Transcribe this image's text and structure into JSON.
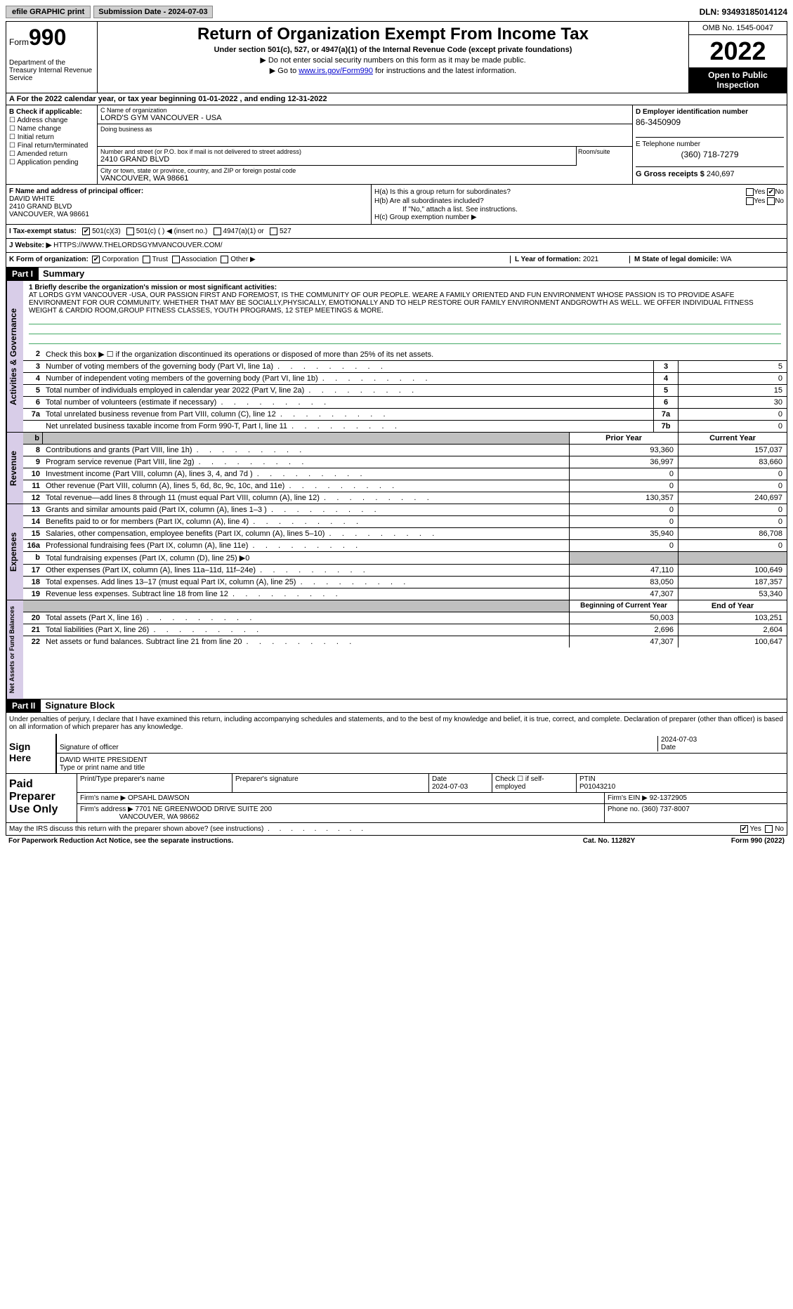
{
  "topbar": {
    "efile": "efile GRAPHIC print",
    "submission": "Submission Date - 2024-07-03",
    "dln": "DLN: 93493185014124"
  },
  "header": {
    "form_label": "Form",
    "form_num": "990",
    "dept": "Department of the Treasury Internal Revenue Service",
    "title": "Return of Organization Exempt From Income Tax",
    "subtitle": "Under section 501(c), 527, or 4947(a)(1) of the Internal Revenue Code (except private foundations)",
    "note1": "▶ Do not enter social security numbers on this form as it may be made public.",
    "note2_pre": "▶ Go to ",
    "note2_link": "www.irs.gov/Form990",
    "note2_post": " for instructions and the latest information.",
    "omb": "OMB No. 1545-0047",
    "year": "2022",
    "open_public": "Open to Public Inspection"
  },
  "section_a": "A For the 2022 calendar year, or tax year beginning 01-01-2022    , and ending 12-31-2022",
  "col_b": {
    "hdr": "B Check if applicable:",
    "items": [
      "Address change",
      "Name change",
      "Initial return",
      "Final return/terminated",
      "Amended return",
      "Application pending"
    ]
  },
  "col_c": {
    "name_lbl": "C Name of organization",
    "name_val": "LORD'S GYM VANCOUVER - USA",
    "dba_lbl": "Doing business as",
    "street_lbl": "Number and street (or P.O. box if mail is not delivered to street address)",
    "street_val": "2410 GRAND BLVD",
    "room_lbl": "Room/suite",
    "city_lbl": "City or town, state or province, country, and ZIP or foreign postal code",
    "city_val": "VANCOUVER, WA  98661"
  },
  "col_d": {
    "d_lbl": "D Employer identification number",
    "d_val": "86-3450909",
    "e_lbl": "E Telephone number",
    "e_val": "(360) 718-7279",
    "g_lbl": "G Gross receipts $",
    "g_val": "240,697"
  },
  "f": {
    "lbl": "F  Name and address of principal officer:",
    "name": "DAVID WHITE",
    "street": "2410 GRAND BLVD",
    "city": "VANCOUVER, WA  98661"
  },
  "h": {
    "ha": "H(a)  Is this a group return for subordinates?",
    "hb": "H(b)  Are all subordinates included?",
    "hb_note": "If \"No,\" attach a list. See instructions.",
    "hc": "H(c)  Group exemption number ▶",
    "yes": "Yes",
    "no": "No"
  },
  "i": {
    "lbl": "I    Tax-exempt status:",
    "opts": [
      "501(c)(3)",
      "501(c) (  ) ◀ (insert no.)",
      "4947(a)(1) or",
      "527"
    ]
  },
  "j": {
    "lbl": "J   Website: ▶",
    "val": "HTTPS://WWW.THELORDSGYMVANCOUVER.COM/"
  },
  "k": {
    "lbl": "K Form of organization:",
    "opts": [
      "Corporation",
      "Trust",
      "Association",
      "Other ▶"
    ],
    "l_lbl": "L Year of formation:",
    "l_val": "2021",
    "m_lbl": "M State of legal domicile:",
    "m_val": "WA"
  },
  "part1": {
    "hdr": "Part I",
    "title": "Summary",
    "line1_lbl": "1  Briefly describe the organization's mission or most significant activities:",
    "mission": "AT LORDS GYM VANCOUVER -USA, OUR PASSION FIRST AND FOREMOST, IS THE COMMUNITY OF OUR PEOPLE. WEARE A FAMILY ORIENTED AND FUN ENVIRONMENT WHOSE PASSION IS TO PROVIDE ASAFE ENVIRONMENT FOR OUR COMMUNITY. WHETHER THAT MAY BE SOCIALLY,PHYSICALLY, EMOTIONALLY AND TO HELP RESTORE OUR FAMILY ENVIRONMENT ANDGROWTH AS WELL. WE OFFER INDIVIDUAL FITNESS WEIGHT & CARDIO ROOM,GROUP FITNESS CLASSES, YOUTH PROGRAMS, 12 STEP MEETINGS & MORE.",
    "line2": "Check this box ▶ ☐  if the organization discontinued its operations or disposed of more than 25% of its net assets.",
    "vtab": "Activities & Governance",
    "rows": [
      {
        "n": "3",
        "t": "Number of voting members of the governing body (Part VI, line 1a)",
        "box": "3",
        "v": "5"
      },
      {
        "n": "4",
        "t": "Number of independent voting members of the governing body (Part VI, line 1b)",
        "box": "4",
        "v": "0"
      },
      {
        "n": "5",
        "t": "Total number of individuals employed in calendar year 2022 (Part V, line 2a)",
        "box": "5",
        "v": "15"
      },
      {
        "n": "6",
        "t": "Total number of volunteers (estimate if necessary)",
        "box": "6",
        "v": "30"
      },
      {
        "n": "7a",
        "t": "Total unrelated business revenue from Part VIII, column (C), line 12",
        "box": "7a",
        "v": "0"
      },
      {
        "n": "",
        "t": "Net unrelated business taxable income from Form 990-T, Part I, line 11",
        "box": "7b",
        "v": "0"
      }
    ]
  },
  "revenue": {
    "vtab": "Revenue",
    "hdr_prior": "Prior Year",
    "hdr_curr": "Current Year",
    "rows": [
      {
        "n": "8",
        "t": "Contributions and grants (Part VIII, line 1h)",
        "p": "93,360",
        "c": "157,037"
      },
      {
        "n": "9",
        "t": "Program service revenue (Part VIII, line 2g)",
        "p": "36,997",
        "c": "83,660"
      },
      {
        "n": "10",
        "t": "Investment income (Part VIII, column (A), lines 3, 4, and 7d )",
        "p": "0",
        "c": "0"
      },
      {
        "n": "11",
        "t": "Other revenue (Part VIII, column (A), lines 5, 6d, 8c, 9c, 10c, and 11e)",
        "p": "0",
        "c": "0"
      },
      {
        "n": "12",
        "t": "Total revenue—add lines 8 through 11 (must equal Part VIII, column (A), line 12)",
        "p": "130,357",
        "c": "240,697"
      }
    ]
  },
  "expenses": {
    "vtab": "Expenses",
    "rows": [
      {
        "n": "13",
        "t": "Grants and similar amounts paid (Part IX, column (A), lines 1–3 )",
        "p": "0",
        "c": "0"
      },
      {
        "n": "14",
        "t": "Benefits paid to or for members (Part IX, column (A), line 4)",
        "p": "0",
        "c": "0"
      },
      {
        "n": "15",
        "t": "Salaries, other compensation, employee benefits (Part IX, column (A), lines 5–10)",
        "p": "35,940",
        "c": "86,708"
      },
      {
        "n": "16a",
        "t": "Professional fundraising fees (Part IX, column (A), line 11e)",
        "p": "0",
        "c": "0"
      },
      {
        "n": "b",
        "t": "Total fundraising expenses (Part IX, column (D), line 25) ▶0",
        "p": "",
        "c": "",
        "shade": true
      },
      {
        "n": "17",
        "t": "Other expenses (Part IX, column (A), lines 11a–11d, 11f–24e)",
        "p": "47,110",
        "c": "100,649"
      },
      {
        "n": "18",
        "t": "Total expenses. Add lines 13–17 (must equal Part IX, column (A), line 25)",
        "p": "83,050",
        "c": "187,357"
      },
      {
        "n": "19",
        "t": "Revenue less expenses. Subtract line 18 from line 12",
        "p": "47,307",
        "c": "53,340"
      }
    ]
  },
  "netassets": {
    "vtab": "Net Assets or Fund Balances",
    "hdr_beg": "Beginning of Current Year",
    "hdr_end": "End of Year",
    "rows": [
      {
        "n": "20",
        "t": "Total assets (Part X, line 16)",
        "p": "50,003",
        "c": "103,251"
      },
      {
        "n": "21",
        "t": "Total liabilities (Part X, line 26)",
        "p": "2,696",
        "c": "2,604"
      },
      {
        "n": "22",
        "t": "Net assets or fund balances. Subtract line 21 from line 20",
        "p": "47,307",
        "c": "100,647"
      }
    ]
  },
  "part2": {
    "hdr": "Part II",
    "title": "Signature Block",
    "decl": "Under penalties of perjury, I declare that I have examined this return, including accompanying schedules and statements, and to the best of my knowledge and belief, it is true, correct, and complete. Declaration of preparer (other than officer) is based on all information of which preparer has any knowledge.",
    "sign_here": "Sign Here",
    "sig_officer": "Signature of officer",
    "date_lbl": "Date",
    "date_val": "2024-07-03",
    "name_title": "DAVID WHITE  PRESIDENT",
    "name_title_lbl": "Type or print name and title"
  },
  "paid": {
    "lbl": "Paid Preparer Use Only",
    "print_name_lbl": "Print/Type preparer's name",
    "prep_sig_lbl": "Preparer's signature",
    "date_lbl": "Date",
    "date_val": "2024-07-03",
    "check_lbl": "Check ☐ if self-employed",
    "ptin_lbl": "PTIN",
    "ptin_val": "P01043210",
    "firm_name_lbl": "Firm's name      ▶",
    "firm_name_val": "OPSAHL DAWSON",
    "firm_ein_lbl": "Firm's EIN ▶",
    "firm_ein_val": "92-1372905",
    "firm_addr_lbl": "Firm's address ▶",
    "firm_addr_val1": "7701 NE GREENWOOD DRIVE SUITE 200",
    "firm_addr_val2": "VANCOUVER, WA  98662",
    "phone_lbl": "Phone no.",
    "phone_val": "(360) 737-8007"
  },
  "footer": {
    "discuss": "May the IRS discuss this return with the preparer shown above? (see instructions)",
    "yes": "Yes",
    "no": "No",
    "paperwork": "For Paperwork Reduction Act Notice, see the separate instructions.",
    "cat": "Cat. No. 11282Y",
    "form": "Form 990 (2022)"
  }
}
